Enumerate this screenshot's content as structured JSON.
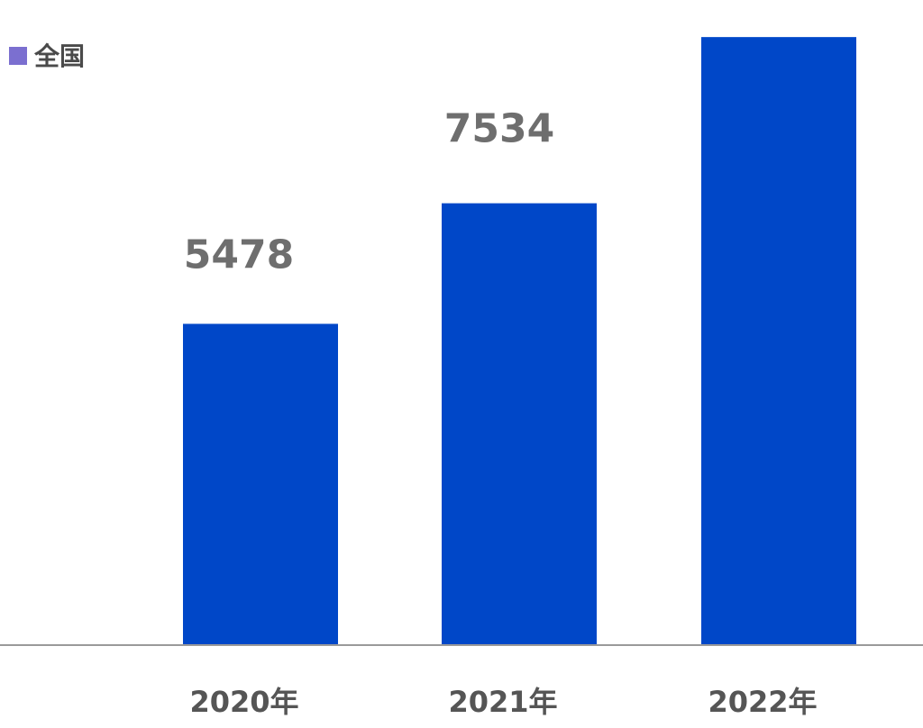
{
  "chart_data": {
    "type": "bar",
    "categories": [
      "2020年",
      "2021年",
      "2022年"
    ],
    "series": [
      {
        "name": "全国",
        "values": [
          5478,
          7534,
          10368
        ],
        "color": "#0047c8"
      }
    ],
    "legend": {
      "position": "top-left",
      "marker_color": "#7b6fd0"
    },
    "ylim": [
      0,
      11000
    ],
    "grid": false
  }
}
